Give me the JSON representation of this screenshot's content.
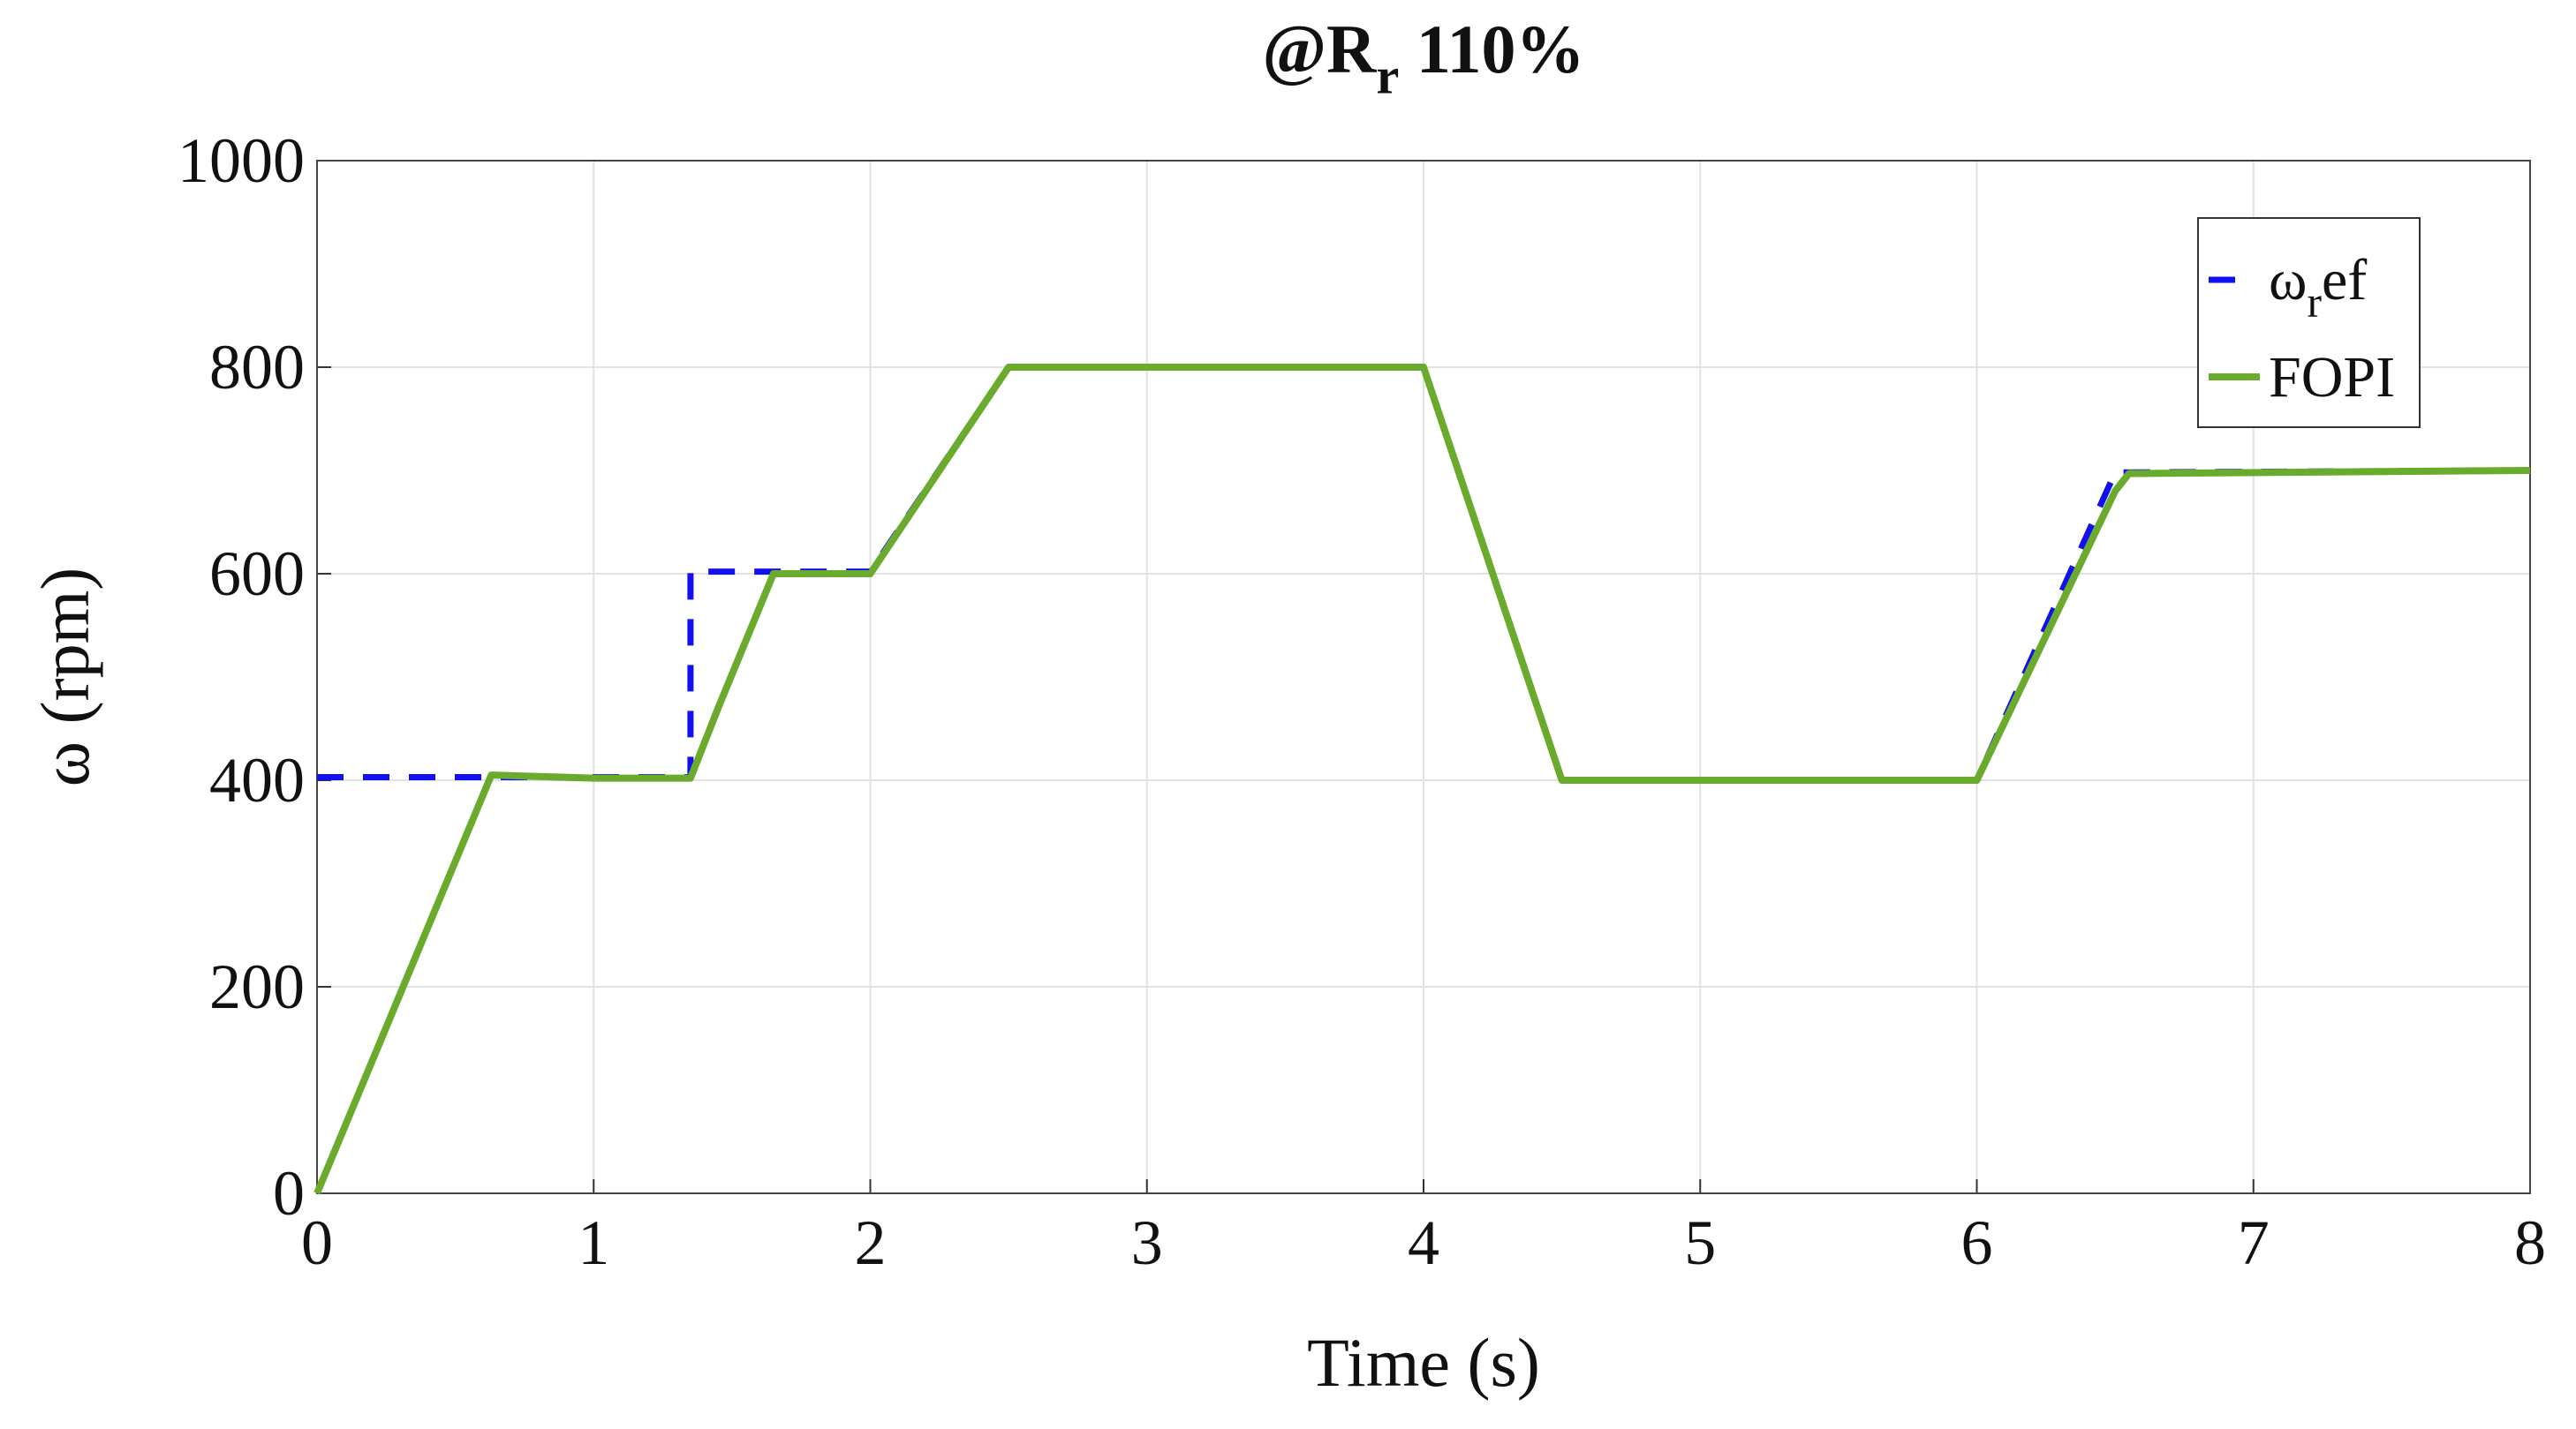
{
  "chart_data": {
    "type": "line",
    "title": [
      "@R",
      "r",
      " 110%"
    ],
    "xlabel": "Time (s)",
    "ylabel": "ω (rpm)",
    "xlim": [
      0,
      8
    ],
    "ylim": [
      0,
      1000
    ],
    "xticks": [
      0,
      1,
      2,
      3,
      4,
      5,
      6,
      7,
      8
    ],
    "yticks": [
      0,
      200,
      400,
      600,
      800,
      1000
    ],
    "grid": true,
    "legend": "upper right",
    "series": [
      {
        "name": [
          "ω",
          "r",
          "ef"
        ],
        "color": "#1010f0",
        "dashed": true,
        "x": [
          0,
          1.35,
          1.35,
          1.65,
          2,
          2.5,
          4,
          4.5,
          6,
          6.5,
          8
        ],
        "values": [
          403,
          403,
          602,
          602,
          602,
          800,
          800,
          400,
          400,
          698,
          700
        ]
      },
      {
        "name": [
          "FOPI"
        ],
        "color": "#6aab2e",
        "dashed": false,
        "x": [
          0,
          0.63,
          1,
          1.35,
          1.45,
          1.65,
          2,
          2.5,
          4,
          4.5,
          6,
          6.5,
          6.55,
          8
        ],
        "values": [
          0,
          405,
          402,
          402,
          470,
          600,
          600,
          800,
          800,
          400,
          400,
          680,
          697,
          700
        ]
      }
    ]
  }
}
